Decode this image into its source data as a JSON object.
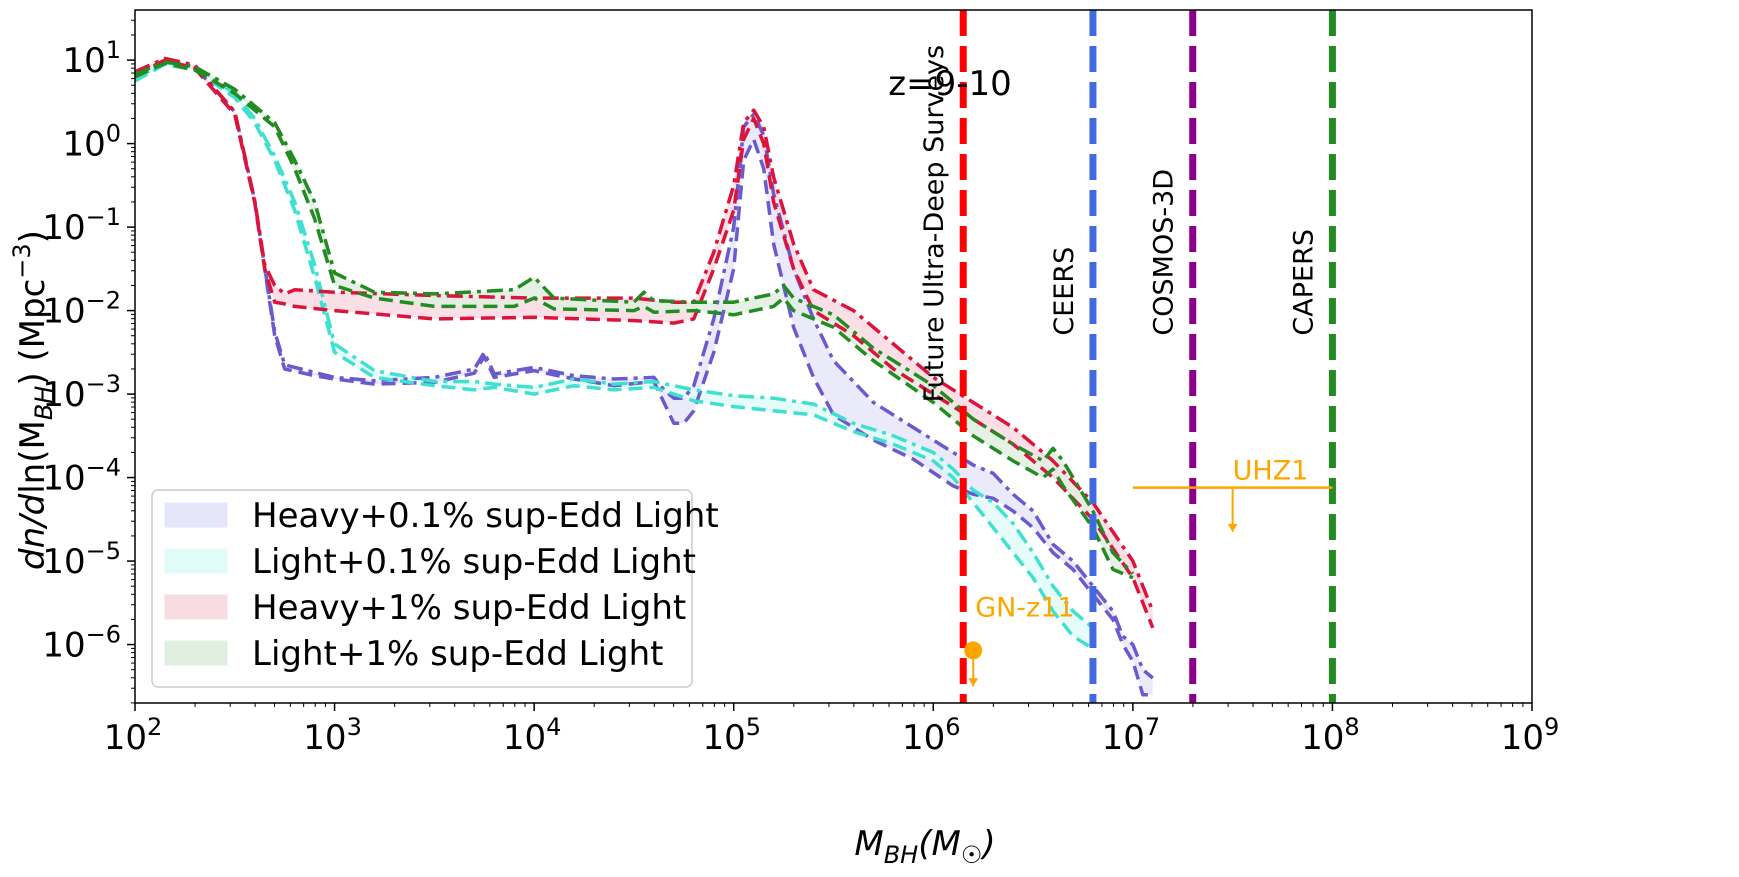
{
  "chart_data": {
    "type": "line",
    "title": "",
    "annotation_z": "z=9-10",
    "xlabel": "M_BH(M_☉)",
    "xlabel_parts": {
      "base": "M",
      "sub": "BH",
      "rest": "(M",
      "sub2": "☉",
      "end": ")"
    },
    "ylabel_parts": {
      "a": "dn/d",
      "b": "ln(M",
      "sub": "BH",
      "c": ") (Mpc",
      "sup": "−3",
      "d": ")"
    },
    "xscale": "log",
    "yscale": "log",
    "xlim_exp": [
      2,
      9
    ],
    "ylim_exp": [
      -6.7,
      1.6
    ],
    "xticks": [
      {
        "exp": 2,
        "base": "10",
        "sup": "2"
      },
      {
        "exp": 3,
        "base": "10",
        "sup": "3"
      },
      {
        "exp": 4,
        "base": "10",
        "sup": "4"
      },
      {
        "exp": 5,
        "base": "10",
        "sup": "5"
      },
      {
        "exp": 6,
        "base": "10",
        "sup": "6"
      },
      {
        "exp": 7,
        "base": "10",
        "sup": "7"
      },
      {
        "exp": 8,
        "base": "10",
        "sup": "8"
      },
      {
        "exp": 9,
        "base": "10",
        "sup": "9"
      }
    ],
    "yticks": [
      {
        "exp": 1,
        "base": "10",
        "sup": "1"
      },
      {
        "exp": 0,
        "base": "10",
        "sup": "0"
      },
      {
        "exp": -1,
        "base": "10",
        "sup": "−1"
      },
      {
        "exp": -2,
        "base": "10",
        "sup": "−2"
      },
      {
        "exp": -3,
        "base": "10",
        "sup": "−3"
      },
      {
        "exp": -4,
        "base": "10",
        "sup": "−4"
      },
      {
        "exp": -5,
        "base": "10",
        "sup": "−5"
      },
      {
        "exp": -6,
        "base": "10",
        "sup": "−6"
      }
    ],
    "series": [
      {
        "name": "Heavy+0.1% sup-Edd Light",
        "color": "#6a5acd",
        "fill": "#e6e6fa",
        "logx": [
          2.0,
          2.15,
          2.3,
          2.5,
          2.6,
          2.65,
          2.7,
          2.75,
          2.9,
          3.0,
          3.2,
          3.5,
          3.7,
          3.75,
          3.8,
          4.0,
          4.2,
          4.4,
          4.6,
          4.65,
          4.7,
          4.75,
          4.8,
          4.9,
          5.0,
          5.05,
          5.1,
          5.15,
          5.2,
          5.3,
          5.4,
          5.5,
          5.7,
          5.9,
          6.1,
          6.2,
          6.3,
          6.4,
          6.5,
          6.6,
          6.7,
          6.8,
          6.9,
          6.95,
          7.0,
          7.05,
          7.1
        ],
        "lower": [
          0.8,
          0.98,
          0.9,
          0.35,
          -0.7,
          -1.5,
          -2.3,
          -2.7,
          -2.78,
          -2.82,
          -2.88,
          -2.86,
          -2.75,
          -2.55,
          -2.8,
          -2.72,
          -2.82,
          -2.9,
          -2.85,
          -3.1,
          -3.35,
          -3.35,
          -3.2,
          -2.5,
          -1.5,
          -0.2,
          0.05,
          -0.3,
          -1.2,
          -2.2,
          -2.8,
          -3.25,
          -3.55,
          -3.78,
          -4.1,
          -4.2,
          -4.25,
          -4.4,
          -4.6,
          -4.9,
          -5.1,
          -5.4,
          -5.7,
          -6.0,
          -6.2,
          -6.6,
          -6.6
        ],
        "upper": [
          0.85,
          1.0,
          0.92,
          0.38,
          -0.68,
          -1.48,
          -2.25,
          -2.65,
          -2.74,
          -2.8,
          -2.84,
          -2.8,
          -2.7,
          -2.5,
          -2.76,
          -2.68,
          -2.78,
          -2.82,
          -2.8,
          -2.95,
          -3.05,
          -3.05,
          -2.9,
          -2.1,
          -1.0,
          0.2,
          0.35,
          0.1,
          -0.6,
          -1.5,
          -2.1,
          -2.6,
          -3.1,
          -3.4,
          -3.7,
          -3.85,
          -3.95,
          -4.2,
          -4.4,
          -4.8,
          -5.0,
          -5.3,
          -5.6,
          -5.9,
          -6.0,
          -6.3,
          -6.4
        ]
      },
      {
        "name": "Light+0.1% sup-Edd Light",
        "color": "#40e0d0",
        "fill": "#e0fbf8",
        "logx": [
          2.0,
          2.15,
          2.3,
          2.5,
          2.6,
          2.7,
          2.8,
          2.9,
          3.0,
          3.2,
          3.5,
          3.7,
          3.8,
          4.0,
          4.2,
          4.4,
          4.6,
          4.8,
          5.0,
          5.2,
          5.4,
          5.6,
          5.8,
          5.9,
          6.0,
          6.1,
          6.2,
          6.3,
          6.4,
          6.5,
          6.6,
          6.7,
          6.8
        ],
        "lower": [
          0.75,
          0.95,
          0.88,
          0.55,
          0.25,
          -0.2,
          -0.8,
          -1.6,
          -2.5,
          -2.8,
          -2.9,
          -2.95,
          -2.92,
          -3.0,
          -2.9,
          -2.95,
          -2.92,
          -3.08,
          -3.15,
          -3.2,
          -3.25,
          -3.45,
          -3.6,
          -3.7,
          -3.8,
          -4.0,
          -4.3,
          -4.6,
          -4.9,
          -5.2,
          -5.6,
          -5.9,
          -6.05
        ],
        "upper": [
          0.78,
          0.97,
          0.92,
          0.6,
          0.3,
          -0.15,
          -0.7,
          -1.45,
          -2.4,
          -2.72,
          -2.85,
          -2.85,
          -2.88,
          -2.92,
          -2.82,
          -2.88,
          -2.85,
          -2.95,
          -3.02,
          -3.05,
          -3.12,
          -3.35,
          -3.5,
          -3.6,
          -3.7,
          -3.9,
          -4.15,
          -4.3,
          -4.55,
          -4.9,
          -5.3,
          -5.6,
          -5.8
        ]
      },
      {
        "name": "Heavy+1% sup-Edd Light",
        "color": "#dc143c",
        "fill": "#f9dbe2",
        "logx": [
          2.0,
          2.15,
          2.3,
          2.5,
          2.6,
          2.65,
          2.7,
          2.75,
          2.8,
          3.0,
          3.5,
          4.0,
          4.5,
          4.7,
          4.8,
          4.9,
          5.0,
          5.05,
          5.1,
          5.15,
          5.2,
          5.3,
          5.4,
          5.6,
          5.8,
          6.0,
          6.2,
          6.4,
          6.6,
          6.8,
          7.0,
          7.1
        ],
        "lower": [
          0.82,
          1.0,
          0.9,
          0.35,
          -0.7,
          -1.5,
          -1.9,
          -1.92,
          -1.95,
          -2.0,
          -2.1,
          -2.08,
          -2.12,
          -2.15,
          -2.1,
          -1.5,
          -0.8,
          0.05,
          0.3,
          0.0,
          -0.7,
          -1.5,
          -2.0,
          -2.3,
          -2.7,
          -3.0,
          -3.3,
          -3.6,
          -4.0,
          -4.5,
          -5.2,
          -5.8
        ],
        "upper": [
          0.86,
          1.02,
          0.94,
          0.38,
          -0.68,
          -1.45,
          -1.7,
          -1.8,
          -1.75,
          -1.78,
          -1.82,
          -1.85,
          -1.85,
          -1.9,
          -1.9,
          -1.3,
          -0.5,
          0.25,
          0.4,
          0.2,
          -0.4,
          -1.2,
          -1.75,
          -2.0,
          -2.4,
          -2.8,
          -3.1,
          -3.4,
          -3.8,
          -4.3,
          -5.0,
          -5.6
        ]
      },
      {
        "name": "Light+1% sup-Edd Light",
        "color": "#228b22",
        "fill": "#e0efe0",
        "logx": [
          2.0,
          2.15,
          2.3,
          2.5,
          2.7,
          2.8,
          2.9,
          3.0,
          3.2,
          3.5,
          3.9,
          4.0,
          4.1,
          4.5,
          4.55,
          4.6,
          4.8,
          5.0,
          5.2,
          5.25,
          5.3,
          5.5,
          5.7,
          6.0,
          6.2,
          6.4,
          6.55,
          6.6,
          6.65,
          6.8,
          6.9,
          7.0
        ],
        "lower": [
          0.8,
          0.96,
          0.88,
          0.6,
          0.2,
          -0.3,
          -0.9,
          -1.7,
          -1.85,
          -1.95,
          -1.95,
          -1.85,
          -1.98,
          -2.0,
          -1.95,
          -2.02,
          -2.0,
          -2.05,
          -1.95,
          -1.85,
          -2.0,
          -2.2,
          -2.6,
          -3.1,
          -3.5,
          -3.8,
          -4.0,
          -3.9,
          -4.1,
          -4.6,
          -5.1,
          -5.2
        ],
        "upper": [
          0.83,
          0.98,
          0.92,
          0.65,
          0.25,
          -0.2,
          -0.7,
          -1.55,
          -1.78,
          -1.8,
          -1.75,
          -1.6,
          -1.85,
          -1.9,
          -1.78,
          -1.88,
          -1.9,
          -1.9,
          -1.8,
          -1.7,
          -1.85,
          -2.05,
          -2.45,
          -2.9,
          -3.3,
          -3.6,
          -3.8,
          -3.65,
          -3.8,
          -4.4,
          -4.9,
          -5.15
        ]
      }
    ],
    "vlines": [
      {
        "name": "Future Ultra-Deep Surveys",
        "logx": 6.15,
        "color": "#ff0000",
        "label_top_logy": 1.5
      },
      {
        "name": "CEERS",
        "logx": 6.8,
        "color": "#4169e1",
        "label_top_logy": -0.8
      },
      {
        "name": "COSMOS-3D",
        "logx": 7.3,
        "color": "#8b008b",
        "label_top_logy": -0.2
      },
      {
        "name": "CAPERS",
        "logx": 8.0,
        "color": "#228b22",
        "label_top_logy": -0.8
      }
    ],
    "points": [
      {
        "name": "GN-z11",
        "logx": 6.2,
        "logy": -6.07,
        "color": "#ffa500",
        "upper_limit": true,
        "limit_to_logy": -6.5
      },
      {
        "name": "UHZ1",
        "logx": 7.5,
        "logy": -4.12,
        "color": "#ffa500",
        "xerr_logx": [
          7.0,
          8.0
        ],
        "upper_limit": true,
        "limit_to_logy": -4.65
      }
    ],
    "legend": {
      "placement": "lower-left",
      "entries": [
        {
          "label": "Heavy+0.1% sup-Edd Light",
          "fill": "#e6e6fa"
        },
        {
          "label": "Light+0.1% sup-Edd Light",
          "fill": "#e0fbf8"
        },
        {
          "label": "Heavy+1% sup-Edd Light",
          "fill": "#f9dbe2"
        },
        {
          "label": "Light+1% sup-Edd Light",
          "fill": "#e0efe0"
        }
      ]
    }
  }
}
